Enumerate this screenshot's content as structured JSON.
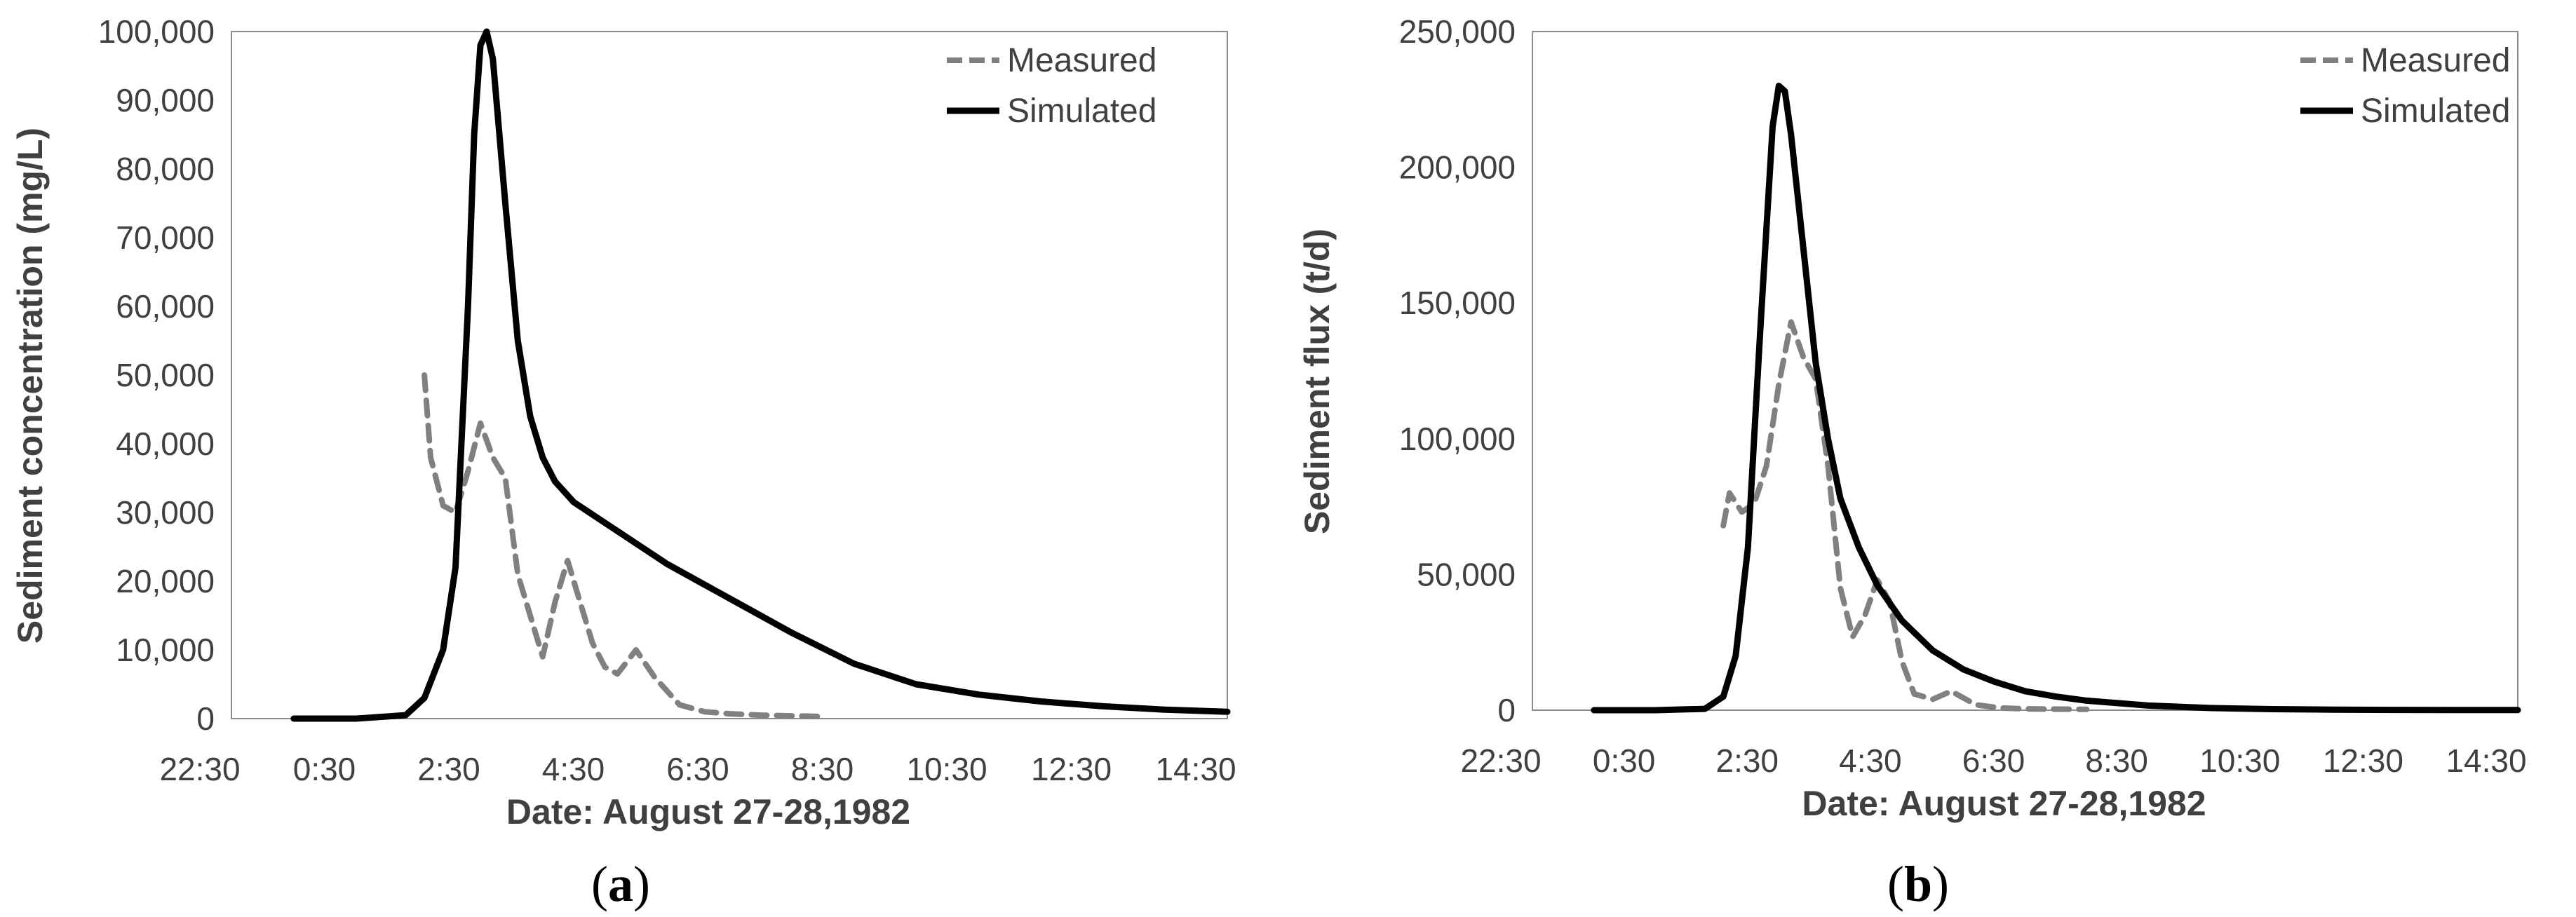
{
  "chart_data": [
    {
      "panel": "(a)",
      "panel_letter": "a",
      "type": "line",
      "xlabel": "Date: August 27-28,1982",
      "ylabel": "Sediment concentration (mg/L)",
      "x_ticks": [
        "22:30",
        "0:30",
        "2:30",
        "4:30",
        "6:30",
        "8:30",
        "10:30",
        "12:30",
        "14:30"
      ],
      "y_ticks": [
        "0",
        "10,000",
        "20,000",
        "30,000",
        "40,000",
        "50,000",
        "60,000",
        "70,000",
        "80,000",
        "90,000",
        "100,000"
      ],
      "ylim": [
        0,
        100000
      ],
      "x_unit": "hours after 22:30 on August 27",
      "xlim": [
        0,
        16
      ],
      "legend_position": "top-right",
      "grid": false,
      "series": [
        {
          "name": "Measured",
          "style": "dashed",
          "color": "#808080",
          "x": [
            3.1,
            3.2,
            3.4,
            3.6,
            3.8,
            4.0,
            4.2,
            4.4,
            4.6,
            4.8,
            5.0,
            5.2,
            5.4,
            5.6,
            5.8,
            6.0,
            6.2,
            6.5,
            6.8,
            7.2,
            7.6,
            8.0,
            8.5,
            9.0,
            9.5
          ],
          "y": [
            50000,
            38000,
            31000,
            30000,
            36000,
            43000,
            38000,
            35000,
            21000,
            15000,
            9000,
            17000,
            23000,
            17000,
            11000,
            7500,
            6500,
            10000,
            6000,
            2000,
            1000,
            700,
            500,
            400,
            300
          ]
        },
        {
          "name": "Simulated",
          "style": "solid",
          "color": "#000000",
          "x": [
            1.0,
            2.0,
            2.8,
            3.1,
            3.4,
            3.6,
            3.8,
            3.9,
            4.0,
            4.1,
            4.2,
            4.4,
            4.6,
            4.8,
            5.0,
            5.2,
            5.5,
            6.0,
            6.5,
            7.0,
            7.5,
            8.0,
            8.5,
            9.0,
            10.0,
            11.0,
            12.0,
            13.0,
            14.0,
            15.0,
            16.0
          ],
          "y": [
            0,
            0,
            500,
            3000,
            10000,
            22000,
            60000,
            85000,
            98000,
            100000,
            96000,
            75000,
            55000,
            44000,
            38000,
            34500,
            31500,
            28500,
            25500,
            22500,
            20000,
            17500,
            15000,
            12500,
            8000,
            5000,
            3500,
            2500,
            1800,
            1300,
            1000
          ]
        }
      ]
    },
    {
      "panel": "(b)",
      "panel_letter": "b",
      "type": "line",
      "xlabel": "Date: August 27-28,1982",
      "ylabel": "Sediment flux (t/d)",
      "x_ticks": [
        "22:30",
        "0:30",
        "2:30",
        "4:30",
        "6:30",
        "8:30",
        "10:30",
        "12:30",
        "14:30"
      ],
      "y_ticks": [
        "0",
        "50,000",
        "100,000",
        "150,000",
        "200,000",
        "250,000"
      ],
      "ylim": [
        0,
        250000
      ],
      "x_unit": "hours after 22:30 on August 27",
      "xlim": [
        0,
        16
      ],
      "legend_position": "top-right",
      "grid": false,
      "series": [
        {
          "name": "Measured",
          "style": "dashed",
          "color": "#808080",
          "x": [
            3.1,
            3.2,
            3.4,
            3.6,
            3.8,
            4.0,
            4.2,
            4.4,
            4.6,
            4.8,
            5.0,
            5.2,
            5.4,
            5.6,
            5.8,
            6.0,
            6.2,
            6.5,
            6.8,
            7.2,
            7.6,
            8.0,
            8.5,
            9.0
          ],
          "y": [
            68000,
            80000,
            73000,
            76000,
            90000,
            120000,
            143000,
            130000,
            122000,
            90000,
            45000,
            27000,
            35000,
            48000,
            40000,
            18000,
            6000,
            4000,
            7000,
            2000,
            800,
            500,
            400,
            300
          ]
        },
        {
          "name": "Simulated",
          "style": "solid",
          "color": "#000000",
          "x": [
            1.0,
            2.0,
            2.8,
            3.1,
            3.3,
            3.5,
            3.7,
            3.9,
            4.0,
            4.1,
            4.2,
            4.4,
            4.6,
            4.8,
            5.0,
            5.3,
            5.6,
            6.0,
            6.5,
            7.0,
            7.5,
            8.0,
            8.5,
            9.0,
            10.0,
            11.0,
            12.0,
            13.0,
            14.0,
            15.0,
            16.0
          ],
          "y": [
            0,
            0,
            500,
            5000,
            20000,
            60000,
            140000,
            215000,
            230000,
            228000,
            212000,
            170000,
            128000,
            100000,
            78000,
            60000,
            46000,
            33000,
            22000,
            15000,
            10500,
            7000,
            5000,
            3500,
            1700,
            800,
            400,
            200,
            100,
            60,
            40
          ]
        }
      ]
    }
  ]
}
